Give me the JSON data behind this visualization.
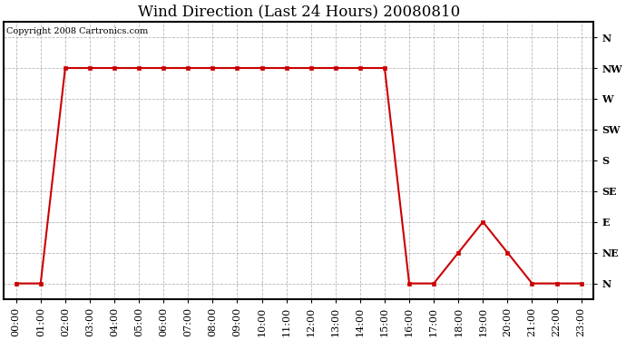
{
  "title": "Wind Direction (Last 24 Hours) 20080810",
  "copyright_text": "Copyright 2008 Cartronics.com",
  "x_labels": [
    "00:00",
    "01:00",
    "02:00",
    "03:00",
    "04:00",
    "05:00",
    "06:00",
    "07:00",
    "08:00",
    "09:00",
    "10:00",
    "11:00",
    "12:00",
    "13:00",
    "14:00",
    "15:00",
    "16:00",
    "17:00",
    "18:00",
    "19:00",
    "20:00",
    "21:00",
    "22:00",
    "23:00"
  ],
  "y_labels": [
    "N",
    "NE",
    "E",
    "SE",
    "S",
    "SW",
    "W",
    "NW",
    "N"
  ],
  "y_values": [
    0,
    1,
    2,
    3,
    4,
    5,
    6,
    7,
    8
  ],
  "wind_x": [
    0,
    1,
    2,
    3,
    4,
    5,
    6,
    7,
    8,
    9,
    10,
    11,
    12,
    13,
    14,
    15,
    16,
    17,
    18,
    19,
    20,
    21,
    22,
    23
  ],
  "wind_y": [
    0,
    0,
    7,
    7,
    7,
    7,
    7,
    7,
    7,
    7,
    7,
    7,
    7,
    7,
    7,
    7,
    0,
    0,
    1,
    2,
    1,
    0,
    0,
    0
  ],
  "line_color": "#cc0000",
  "marker_color": "#cc0000",
  "bg_color": "#ffffff",
  "grid_color": "#999999",
  "title_fontsize": 12,
  "tick_fontsize": 8,
  "copyright_fontsize": 7
}
